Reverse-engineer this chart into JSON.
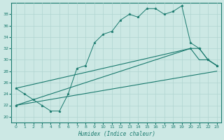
{
  "xlabel": "Humidex (Indice chaleur)",
  "xlim": [
    -0.5,
    23.5
  ],
  "ylim": [
    19,
    40
  ],
  "xticks": [
    0,
    1,
    2,
    3,
    4,
    5,
    6,
    7,
    8,
    9,
    10,
    11,
    12,
    13,
    14,
    15,
    16,
    17,
    18,
    19,
    20,
    21,
    22,
    23
  ],
  "yticks": [
    20,
    22,
    24,
    26,
    28,
    30,
    32,
    34,
    36,
    38
  ],
  "bg_color": "#cce8e4",
  "grid_color": "#b0d4d0",
  "line_color": "#1a7a6e",
  "line1_x": [
    0,
    1,
    2,
    3,
    4,
    5,
    6,
    7,
    8,
    9,
    10,
    11,
    12,
    13,
    14,
    15,
    16,
    17,
    18,
    19,
    20,
    21,
    22,
    23
  ],
  "line1_y": [
    25,
    24,
    23,
    22,
    21,
    21,
    24,
    28.5,
    29,
    33,
    34.5,
    35,
    37,
    38,
    37.5,
    39,
    39,
    38,
    38.5,
    39.5,
    33,
    32,
    30,
    29
  ],
  "line2_x": [
    0,
    23
  ],
  "line2_y": [
    22,
    28
  ],
  "line3_x": [
    0,
    20,
    21,
    22,
    23
  ],
  "line3_y": [
    22,
    32,
    32,
    30,
    29
  ],
  "line4_x": [
    0,
    20,
    21,
    22,
    23
  ],
  "line4_y": [
    25,
    32,
    30,
    30,
    29
  ]
}
